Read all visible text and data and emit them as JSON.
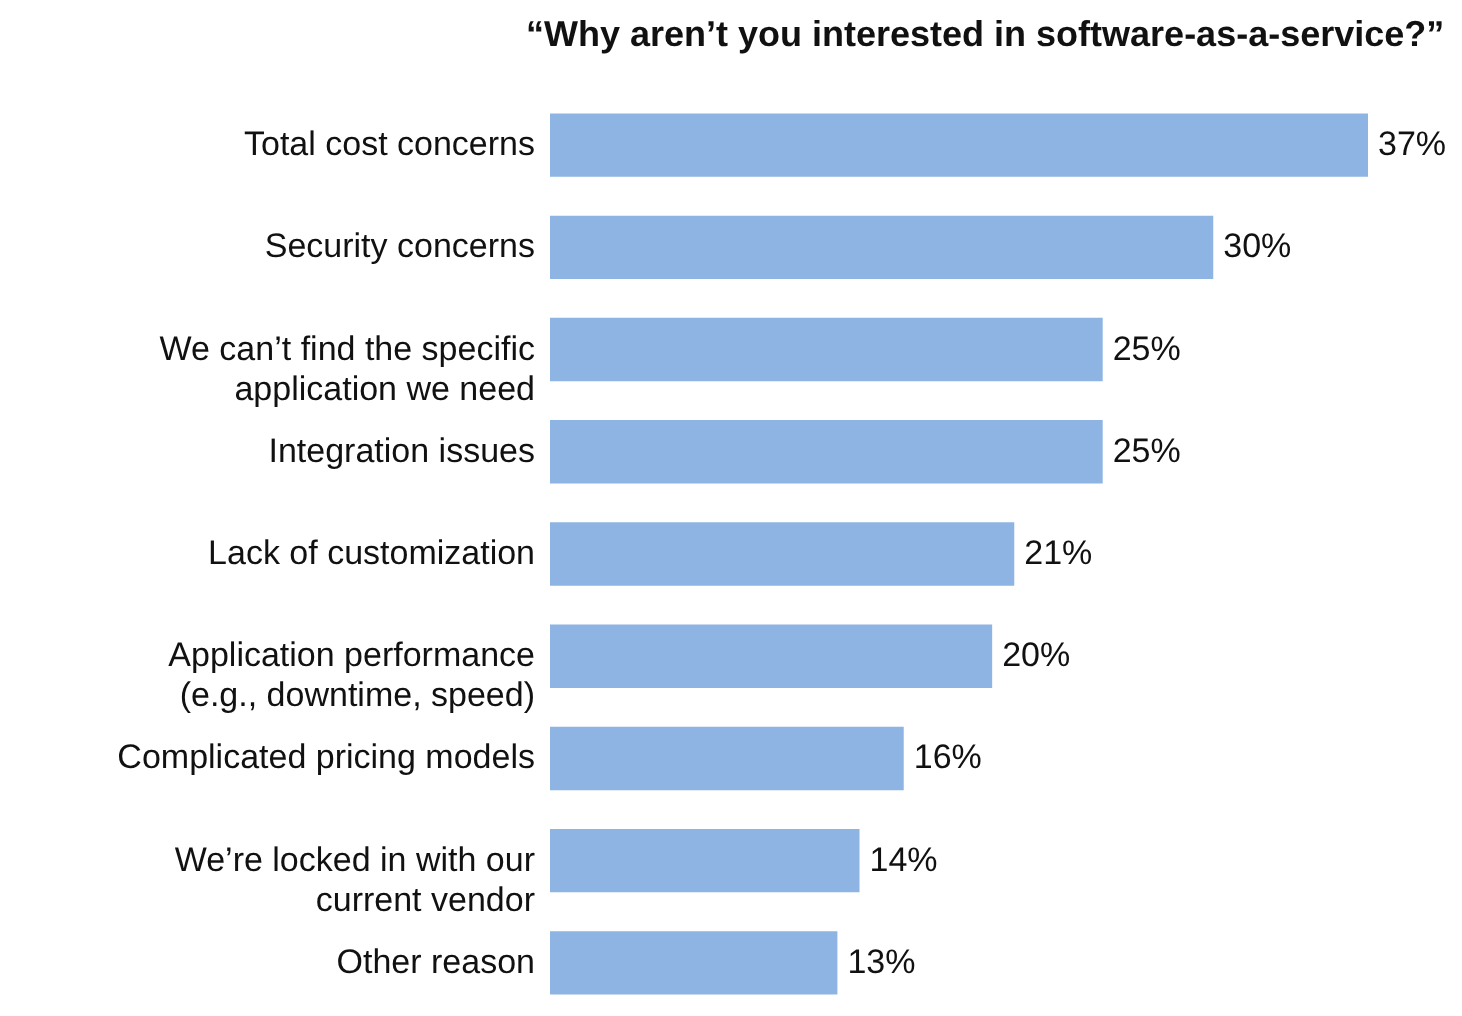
{
  "chart_data": {
    "type": "bar",
    "orientation": "horizontal",
    "title": "“Why aren’t you interested in software-as-a-service?”",
    "categories": [
      "Total cost concerns",
      "Security concerns",
      "We can’t find the specific application we need",
      "Integration issues",
      "Lack of customization",
      "Application performance (e.g., downtime, speed)",
      "Complicated pricing models",
      "We’re locked in with our current vendor",
      "Other reason"
    ],
    "values": [
      37,
      30,
      25,
      25,
      21,
      20,
      16,
      14,
      13
    ],
    "value_labels": [
      "37%",
      "30%",
      "25%",
      "25%",
      "21%",
      "20%",
      "16%",
      "14%",
      "13%"
    ],
    "color": "#8db4e2"
  }
}
